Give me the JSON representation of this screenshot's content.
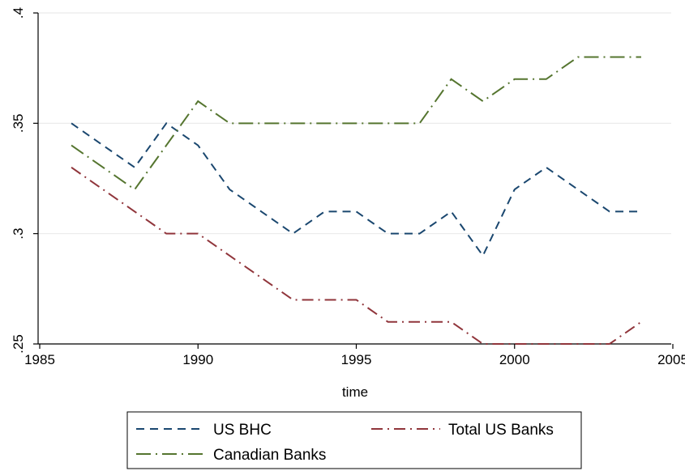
{
  "chart_data": {
    "type": "line",
    "title": "",
    "xlabel": "time",
    "ylabel": "",
    "xlim": [
      1985,
      2005
    ],
    "ylim": [
      0.25,
      0.4
    ],
    "x_ticks": [
      1985,
      1990,
      1995,
      2000,
      2005
    ],
    "x_tick_labels": [
      "1985",
      "1990",
      "1995",
      "2000",
      "2005"
    ],
    "y_ticks": [
      0.25,
      0.3,
      0.35,
      0.4
    ],
    "y_tick_labels": [
      ".25",
      ".3",
      ".35",
      ".4"
    ],
    "grid": "horizontal",
    "legend_position": "bottom",
    "x": [
      1986,
      1987,
      1988,
      1989,
      1990,
      1991,
      1992,
      1993,
      1994,
      1995,
      1996,
      1997,
      1998,
      1999,
      2000,
      2001,
      2002,
      2003,
      2004
    ],
    "series": [
      {
        "name": "US BHC",
        "color": "#1a476f",
        "style": "dash",
        "values": [
          0.35,
          0.34,
          0.33,
          0.35,
          0.34,
          0.32,
          0.31,
          0.3,
          0.31,
          0.31,
          0.3,
          0.3,
          0.31,
          0.29,
          0.32,
          0.33,
          0.32,
          0.31,
          0.31
        ]
      },
      {
        "name": "Total US Banks",
        "color": "#90353b",
        "style": "dash-dot",
        "values": [
          0.33,
          0.32,
          0.31,
          0.3,
          0.3,
          0.29,
          0.28,
          0.27,
          0.27,
          0.27,
          0.26,
          0.26,
          0.26,
          0.25,
          0.25,
          0.25,
          0.25,
          0.25,
          0.26
        ]
      },
      {
        "name": "Canadian Banks",
        "color": "#55752f",
        "style": "long-dash-dot",
        "values": [
          0.34,
          0.33,
          0.32,
          0.34,
          0.36,
          0.35,
          0.35,
          0.35,
          0.35,
          0.35,
          0.35,
          0.35,
          0.37,
          0.36,
          0.37,
          0.37,
          0.38,
          0.38,
          0.38
        ]
      }
    ]
  }
}
